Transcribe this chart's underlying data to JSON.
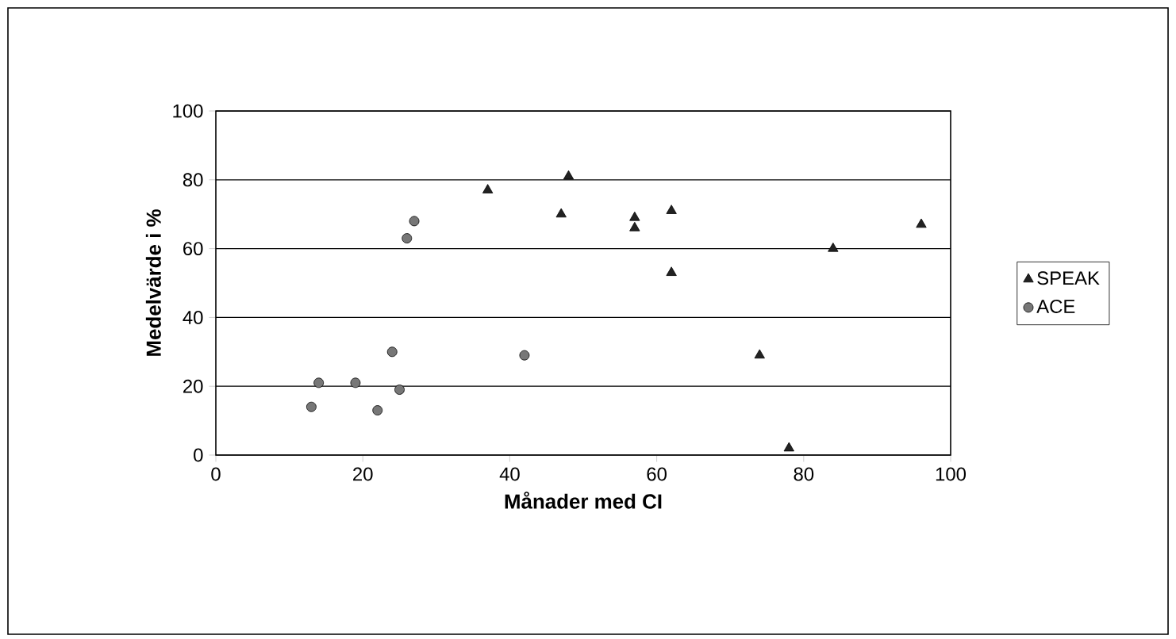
{
  "chart_data": {
    "type": "scatter",
    "xlabel": "Månader med CI",
    "ylabel": "Medelvärde i %",
    "xlim": [
      0,
      100
    ],
    "ylim": [
      0,
      100
    ],
    "xticks": [
      0,
      20,
      40,
      60,
      80,
      100
    ],
    "yticks": [
      0,
      20,
      40,
      60,
      80,
      100
    ],
    "grid": "y",
    "legend": "right",
    "series": [
      {
        "name": "SPEAK",
        "color": "#222222",
        "marker": "triangle",
        "x": [
          37,
          48,
          47,
          57,
          57,
          62,
          62,
          74,
          78,
          84,
          96
        ],
        "values": [
          77,
          81,
          70,
          69,
          66,
          71,
          53,
          29,
          2,
          60,
          67
        ]
      },
      {
        "name": "ACE",
        "color": "#777777",
        "marker": "circle",
        "x": [
          13,
          14,
          19,
          22,
          24,
          25,
          26,
          27,
          42
        ],
        "values": [
          14,
          21,
          21,
          13,
          30,
          19,
          63,
          68,
          29
        ]
      }
    ]
  }
}
